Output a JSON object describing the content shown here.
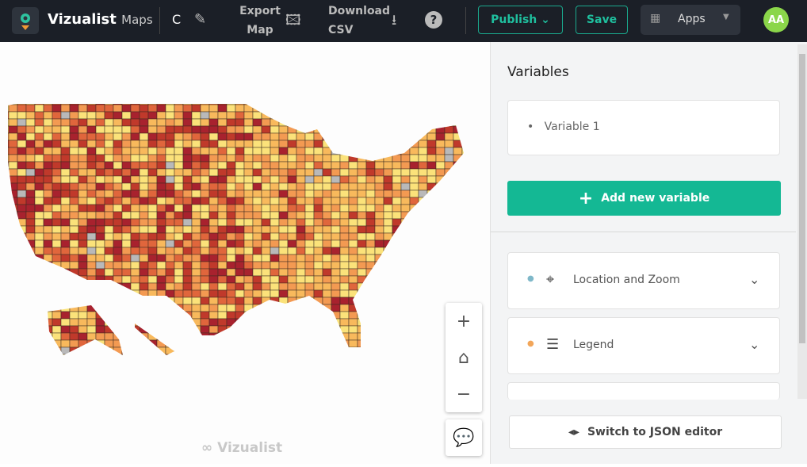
{
  "header": {
    "brand": "Vizualist",
    "brand_sub": "Maps",
    "map_name": "C",
    "export_label_1": "Export",
    "export_label_2": "Map",
    "download_label_1": "Download",
    "download_label_2": "CSV",
    "publish": "Publish",
    "save": "Save",
    "apps": "Apps",
    "avatar": "AA"
  },
  "map": {
    "watermark": "Vizualist",
    "palette": [
      "#fbe27a",
      "#f8b95c",
      "#f39a52",
      "#e0663c",
      "#c0392b",
      "#a8222e",
      "#b9b9b9"
    ]
  },
  "panel": {
    "title": "Variables",
    "variables": [
      "Variable 1"
    ],
    "add_variable": "Add new variable",
    "sections": [
      {
        "label": "Location and Zoom",
        "dot": "#7fb8c9"
      },
      {
        "label": "Legend",
        "dot": "#f2a65a"
      }
    ],
    "json_editor": "Switch to JSON editor"
  },
  "accent": "#14b894"
}
